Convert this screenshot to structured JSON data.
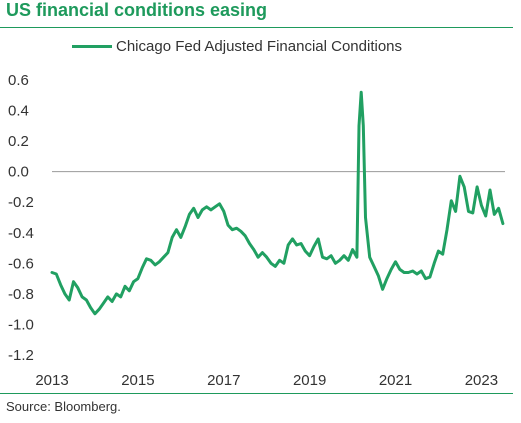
{
  "title": "US financial conditions easing",
  "source": "Source: Bloomberg.",
  "colors": {
    "accent": "#1e9a5c",
    "line": "#21a062",
    "zero_line": "#9a9a9a",
    "text": "#333333"
  },
  "chart_data": {
    "type": "line",
    "title": "US financial conditions easing",
    "xlabel": "",
    "ylabel": "",
    "xlim": [
      2013,
      2023.55
    ],
    "ylim": [
      -1.2,
      0.6
    ],
    "x_ticks": [
      "2013",
      "2015",
      "2017",
      "2019",
      "2021",
      "2023"
    ],
    "x_tick_values": [
      2013,
      2015,
      2017,
      2019,
      2021,
      2023
    ],
    "y_ticks": [
      "0.6",
      "0.4",
      "0.2",
      "0.0",
      "-0.2",
      "-0.4",
      "-0.6",
      "-0.8",
      "-1.0",
      "-1.2"
    ],
    "y_tick_values": [
      0.6,
      0.4,
      0.2,
      0.0,
      -0.2,
      -0.4,
      -0.6,
      -0.8,
      -1.0,
      -1.2
    ],
    "grid": false,
    "zero_line": true,
    "legend": "top",
    "series": [
      {
        "name": "Chicago Fed Adjusted Financial Conditions",
        "points": [
          [
            2013.0,
            -0.66
          ],
          [
            2013.1,
            -0.67
          ],
          [
            2013.2,
            -0.74
          ],
          [
            2013.3,
            -0.8
          ],
          [
            2013.4,
            -0.84
          ],
          [
            2013.5,
            -0.72
          ],
          [
            2013.6,
            -0.76
          ],
          [
            2013.7,
            -0.82
          ],
          [
            2013.8,
            -0.84
          ],
          [
            2013.9,
            -0.89
          ],
          [
            2014.0,
            -0.93
          ],
          [
            2014.1,
            -0.9
          ],
          [
            2014.2,
            -0.86
          ],
          [
            2014.3,
            -0.82
          ],
          [
            2014.4,
            -0.85
          ],
          [
            2014.5,
            -0.8
          ],
          [
            2014.6,
            -0.82
          ],
          [
            2014.7,
            -0.75
          ],
          [
            2014.8,
            -0.78
          ],
          [
            2014.9,
            -0.72
          ],
          [
            2015.0,
            -0.7
          ],
          [
            2015.1,
            -0.63
          ],
          [
            2015.2,
            -0.57
          ],
          [
            2015.3,
            -0.58
          ],
          [
            2015.4,
            -0.61
          ],
          [
            2015.5,
            -0.59
          ],
          [
            2015.6,
            -0.56
          ],
          [
            2015.7,
            -0.53
          ],
          [
            2015.8,
            -0.43
          ],
          [
            2015.9,
            -0.38
          ],
          [
            2016.0,
            -0.43
          ],
          [
            2016.1,
            -0.36
          ],
          [
            2016.2,
            -0.28
          ],
          [
            2016.3,
            -0.24
          ],
          [
            2016.4,
            -0.3
          ],
          [
            2016.5,
            -0.25
          ],
          [
            2016.6,
            -0.23
          ],
          [
            2016.7,
            -0.25
          ],
          [
            2016.8,
            -0.23
          ],
          [
            2016.9,
            -0.21
          ],
          [
            2017.0,
            -0.26
          ],
          [
            2017.1,
            -0.35
          ],
          [
            2017.2,
            -0.38
          ],
          [
            2017.3,
            -0.37
          ],
          [
            2017.4,
            -0.39
          ],
          [
            2017.5,
            -0.42
          ],
          [
            2017.6,
            -0.47
          ],
          [
            2017.7,
            -0.51
          ],
          [
            2017.8,
            -0.56
          ],
          [
            2017.9,
            -0.53
          ],
          [
            2018.0,
            -0.56
          ],
          [
            2018.1,
            -0.6
          ],
          [
            2018.2,
            -0.62
          ],
          [
            2018.3,
            -0.58
          ],
          [
            2018.4,
            -0.6
          ],
          [
            2018.5,
            -0.48
          ],
          [
            2018.6,
            -0.44
          ],
          [
            2018.7,
            -0.48
          ],
          [
            2018.8,
            -0.47
          ],
          [
            2018.9,
            -0.52
          ],
          [
            2019.0,
            -0.55
          ],
          [
            2019.1,
            -0.49
          ],
          [
            2019.2,
            -0.44
          ],
          [
            2019.3,
            -0.56
          ],
          [
            2019.4,
            -0.57
          ],
          [
            2019.5,
            -0.55
          ],
          [
            2019.6,
            -0.6
          ],
          [
            2019.7,
            -0.58
          ],
          [
            2019.8,
            -0.55
          ],
          [
            2019.9,
            -0.58
          ],
          [
            2020.0,
            -0.51
          ],
          [
            2020.1,
            -0.56
          ],
          [
            2020.15,
            0.3
          ],
          [
            2020.2,
            0.52
          ],
          [
            2020.25,
            0.3
          ],
          [
            2020.3,
            -0.3
          ],
          [
            2020.4,
            -0.56
          ],
          [
            2020.5,
            -0.62
          ],
          [
            2020.6,
            -0.68
          ],
          [
            2020.7,
            -0.77
          ],
          [
            2020.8,
            -0.7
          ],
          [
            2020.9,
            -0.64
          ],
          [
            2021.0,
            -0.59
          ],
          [
            2021.1,
            -0.64
          ],
          [
            2021.2,
            -0.66
          ],
          [
            2021.3,
            -0.66
          ],
          [
            2021.4,
            -0.65
          ],
          [
            2021.5,
            -0.67
          ],
          [
            2021.6,
            -0.65
          ],
          [
            2021.7,
            -0.7
          ],
          [
            2021.8,
            -0.69
          ],
          [
            2021.9,
            -0.6
          ],
          [
            2022.0,
            -0.52
          ],
          [
            2022.1,
            -0.54
          ],
          [
            2022.2,
            -0.38
          ],
          [
            2022.3,
            -0.19
          ],
          [
            2022.4,
            -0.26
          ],
          [
            2022.5,
            -0.03
          ],
          [
            2022.6,
            -0.1
          ],
          [
            2022.7,
            -0.26
          ],
          [
            2022.8,
            -0.27
          ],
          [
            2022.9,
            -0.1
          ],
          [
            2023.0,
            -0.22
          ],
          [
            2023.1,
            -0.29
          ],
          [
            2023.2,
            -0.12
          ],
          [
            2023.3,
            -0.28
          ],
          [
            2023.4,
            -0.24
          ],
          [
            2023.5,
            -0.34
          ]
        ]
      }
    ]
  }
}
